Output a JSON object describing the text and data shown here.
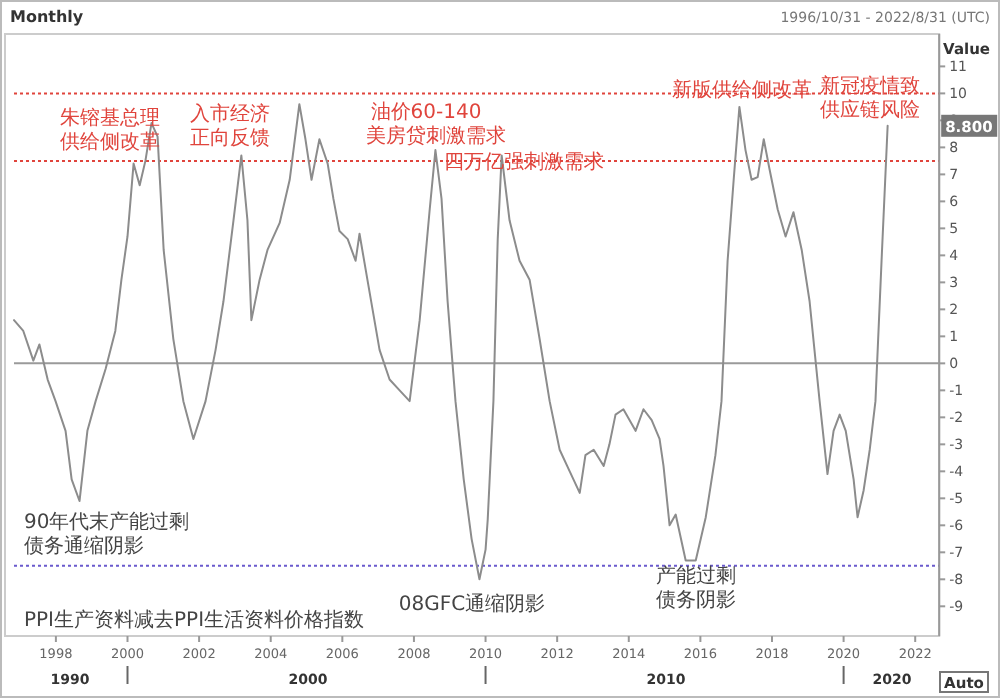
{
  "chart_data": {
    "type": "line",
    "title": "Monthly",
    "subtitle": "1996/10/31 - 2022/8/31 (UTC)",
    "ylabel": "Value",
    "xlim": [
      1996.83,
      2022.67
    ],
    "ylim": [
      -10.1,
      12.2
    ],
    "xticks": [
      1998,
      2000,
      2002,
      2004,
      2006,
      2008,
      2010,
      2012,
      2014,
      2016,
      2018,
      2020,
      2022
    ],
    "yticks": [
      -9,
      -8,
      -7,
      -6,
      -5,
      -4,
      -3,
      -2,
      -1,
      0,
      1,
      2,
      3,
      4,
      5,
      6,
      7,
      8,
      9,
      10,
      11
    ],
    "grid": false,
    "marker": "none",
    "line_style": "solid",
    "series": [
      {
        "color": "#8c8c8c",
        "x": [
          1996.83,
          1997.09,
          1997.37,
          1997.54,
          1997.77,
          1997.99,
          1998.27,
          1998.44,
          1998.66,
          1998.88,
          1999.11,
          1999.39,
          1999.66,
          1999.83,
          2000.0,
          2000.17,
          2000.34,
          2000.5,
          2000.67,
          2000.84,
          2001.01,
          2001.28,
          2001.56,
          2001.84,
          2002.18,
          2002.46,
          2002.68,
          2002.96,
          2003.18,
          2003.35,
          2003.46,
          2003.69,
          2003.91,
          2004.25,
          2004.53,
          2004.8,
          2004.97,
          2005.14,
          2005.36,
          2005.59,
          2005.75,
          2005.92,
          2006.15,
          2006.37,
          2006.48,
          2006.7,
          2007.04,
          2007.32,
          2007.6,
          2007.88,
          2008.16,
          2008.44,
          2008.6,
          2008.77,
          2008.94,
          2009.16,
          2009.39,
          2009.61,
          2009.83,
          2010.0,
          2010.06,
          2010.22,
          2010.34,
          2010.45,
          2010.67,
          2010.95,
          2011.23,
          2011.51,
          2011.79,
          2012.07,
          2012.35,
          2012.63,
          2012.79,
          2013.02,
          2013.3,
          2013.46,
          2013.63,
          2013.85,
          2014.19,
          2014.41,
          2014.64,
          2014.86,
          2014.97,
          2015.14,
          2015.31,
          2015.59,
          2015.87,
          2016.15,
          2016.42,
          2016.59,
          2016.76,
          2016.93,
          2017.09,
          2017.26,
          2017.43,
          2017.6,
          2017.77,
          2017.93,
          2018.16,
          2018.38,
          2018.6,
          2018.83,
          2019.05,
          2019.33,
          2019.55,
          2019.72,
          2019.89,
          2020.06,
          2020.28,
          2020.39,
          2020.56,
          2020.73,
          2020.89,
          2021.06,
          2021.23
        ],
        "values": [
          1.6,
          1.2,
          0.1,
          0.7,
          -0.6,
          -1.4,
          -2.5,
          -4.3,
          -5.1,
          -2.5,
          -1.4,
          -0.2,
          1.2,
          3.1,
          4.7,
          7.4,
          6.6,
          7.5,
          8.9,
          8.4,
          4.2,
          0.9,
          -1.4,
          -2.8,
          -1.4,
          0.5,
          2.3,
          5.3,
          7.7,
          5.3,
          1.6,
          3.1,
          4.2,
          5.2,
          6.8,
          9.6,
          8.3,
          6.8,
          8.3,
          7.4,
          6.1,
          4.9,
          4.6,
          3.8,
          4.8,
          3.1,
          0.5,
          -0.6,
          -1.0,
          -1.4,
          1.6,
          5.7,
          7.9,
          6.1,
          2.3,
          -1.4,
          -4.3,
          -6.5,
          -8.0,
          -6.9,
          -5.8,
          -1.4,
          4.6,
          7.7,
          5.3,
          3.8,
          3.1,
          0.9,
          -1.4,
          -3.2,
          -4.0,
          -4.8,
          -3.4,
          -3.2,
          -3.8,
          -3.0,
          -1.9,
          -1.7,
          -2.5,
          -1.7,
          -2.1,
          -2.8,
          -3.8,
          -6.0,
          -5.6,
          -7.3,
          -7.3,
          -5.7,
          -3.4,
          -1.4,
          3.8,
          6.8,
          9.5,
          7.9,
          6.8,
          6.9,
          8.3,
          7.2,
          5.7,
          4.7,
          5.6,
          4.2,
          2.3,
          -1.4,
          -4.1,
          -2.5,
          -1.9,
          -2.5,
          -4.3,
          -5.7,
          -4.7,
          -3.2,
          -1.4,
          3.8,
          8.8
        ]
      }
    ],
    "ref_lines": [
      {
        "axis": "y",
        "value": 10,
        "color": "#e0443c",
        "line_style": "dotted"
      },
      {
        "axis": "y",
        "value": 7.5,
        "color": "#e0443c",
        "line_style": "dotted"
      },
      {
        "axis": "y",
        "value": -7.5,
        "color": "#6a5acd",
        "line_style": "dotted"
      },
      {
        "axis": "y",
        "value": 0,
        "color": "#9a9a9a",
        "line_style": "solid"
      }
    ],
    "annotations": [
      "朱镕基总理",
      "供给侧改革",
      "入市经济",
      "正向反馈",
      "油价60-140",
      "美房贷刺激需求",
      "四万亿强刺激需求",
      "新版供给侧改革",
      "新冠疫情致",
      "供应链风险",
      "90年代末产能过剩",
      "债务通缩阴影",
      "08GFC通缩阴影",
      "产能过剩",
      "债务阴影",
      "PPI生产资料减去PPI生活资料价格指数",
      "8.800",
      "1990",
      "2000",
      "2010",
      "2020",
      "Auto"
    ]
  }
}
